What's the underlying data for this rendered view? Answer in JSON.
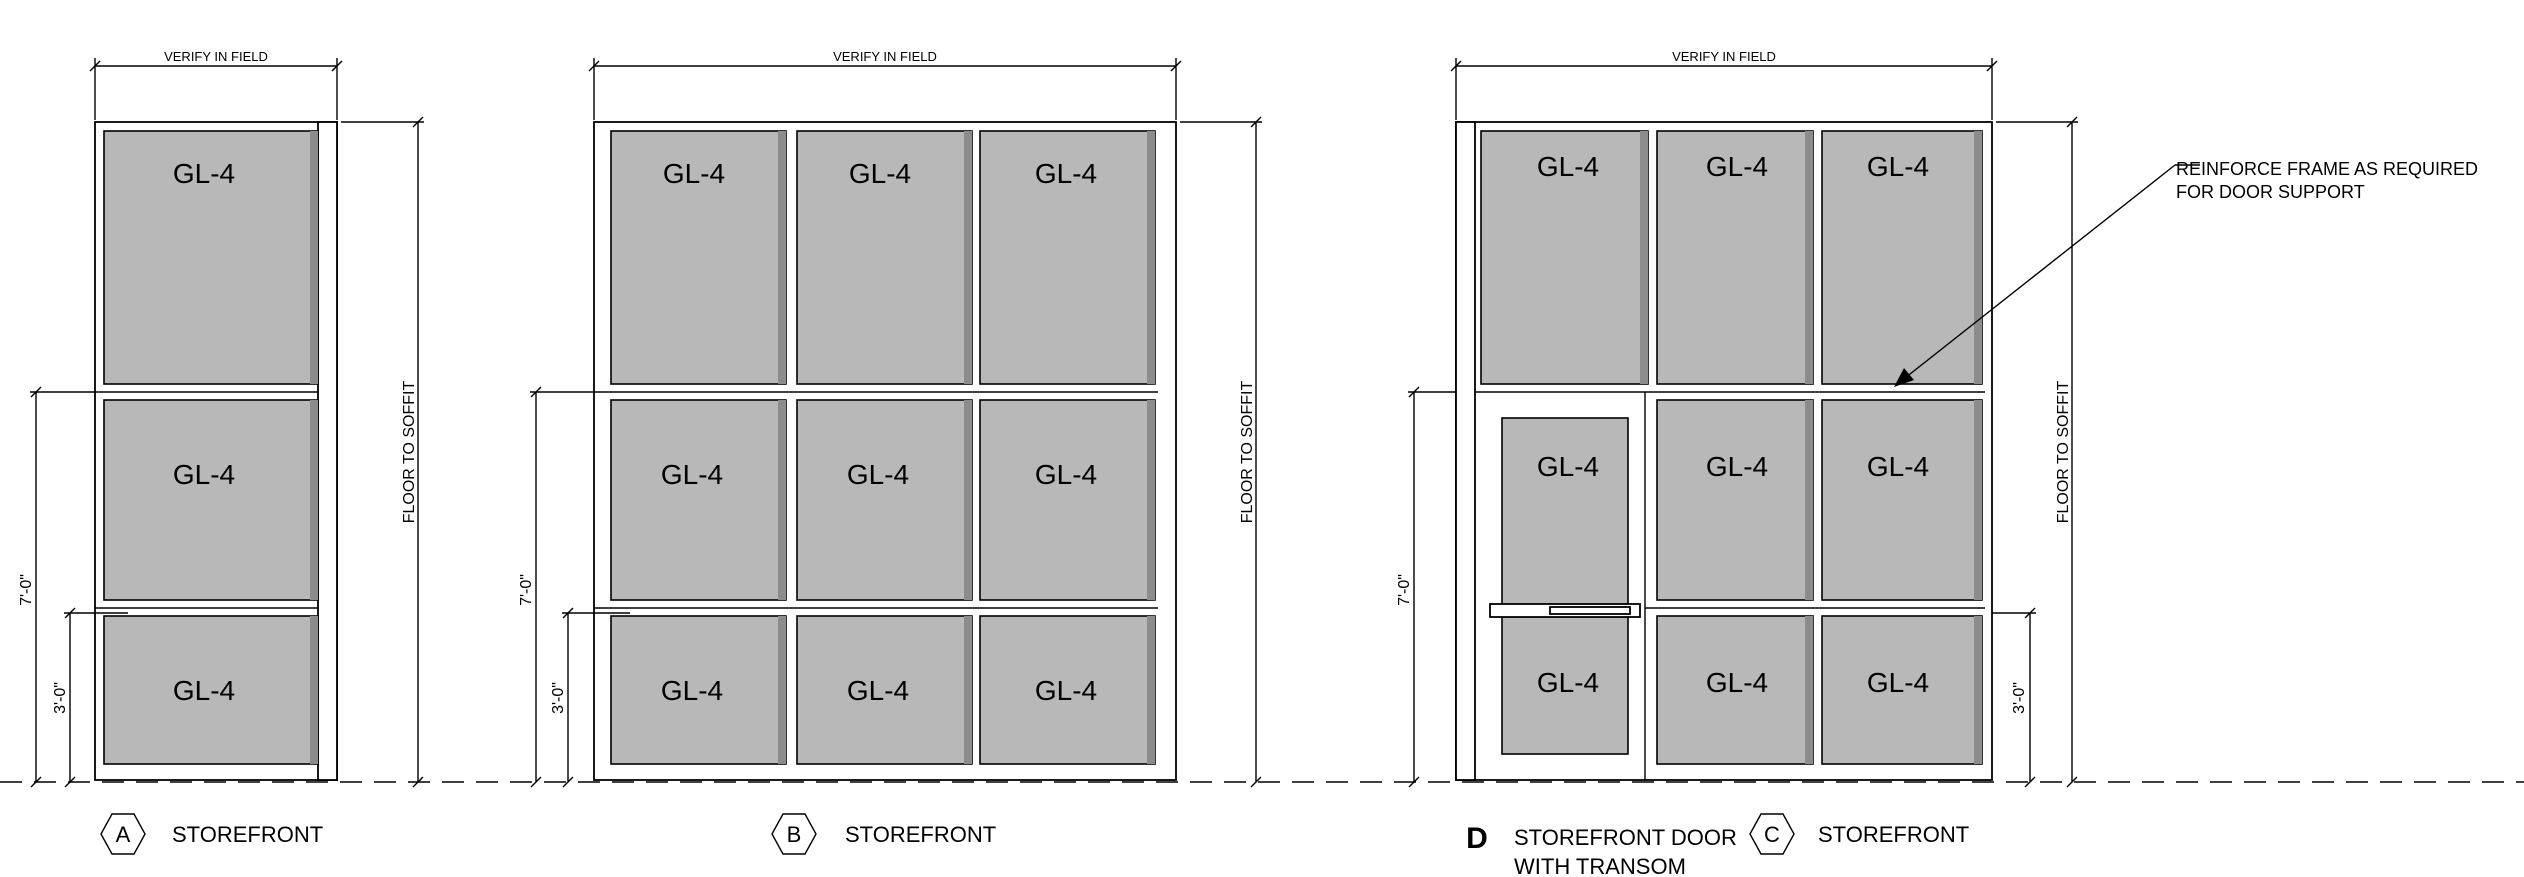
{
  "dimensions": {
    "verify_in_field": "VERIFY IN FIELD",
    "floor_to_soffit": "FLOOR TO SOFFIT",
    "seven_feet": "7'-0\"",
    "three_feet": "3'-0\""
  },
  "glazing_label": "GL-4",
  "elevations": [
    {
      "id": "A",
      "title": "STOREFRONT"
    },
    {
      "id": "B",
      "title": "STOREFRONT"
    },
    {
      "id": "C",
      "title": "STOREFRONT"
    }
  ],
  "door_elevation": {
    "id": "D",
    "title_line1": "STOREFRONT DOOR",
    "title_line2": "WITH TRANSOM"
  },
  "annotation": {
    "line1": "REINFORCE FRAME AS REQUIRED",
    "line2": "FOR DOOR SUPPORT"
  }
}
